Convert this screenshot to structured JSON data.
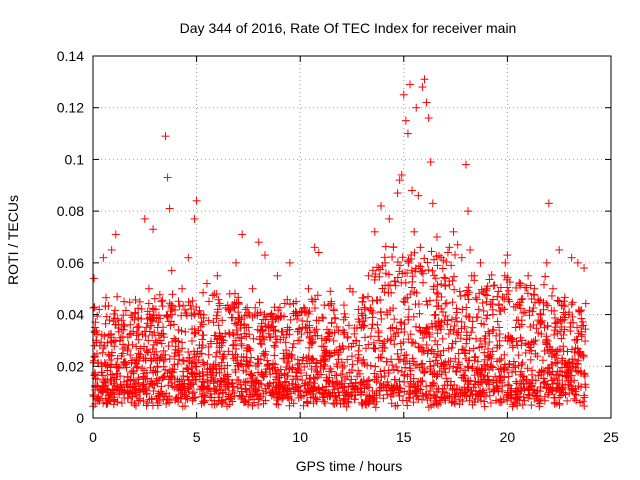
{
  "chart_data": {
    "type": "scatter",
    "title": "Day 344 of 2016, Rate Of TEC Index for receiver main",
    "xlabel": "GPS time / hours",
    "ylabel": "ROTI / TECUs",
    "xlim": [
      0,
      25
    ],
    "ylim": [
      0,
      0.14
    ],
    "xticks": [
      0,
      5,
      10,
      15,
      20,
      25
    ],
    "xtick_labels": [
      "0",
      "5",
      "10",
      "15",
      "20",
      "25"
    ],
    "yticks": [
      0,
      0.02,
      0.04,
      0.06,
      0.08,
      0.1,
      0.12,
      0.14
    ],
    "ytick_labels": [
      "0",
      "0.02",
      "0.04",
      "0.06",
      "0.08",
      "0.1",
      "0.12",
      "0.14"
    ],
    "grid": true,
    "marker": "plus",
    "marker_color": "#ff0000",
    "series": [
      {
        "name": "ROTI",
        "x": [
          0.05,
          0.1,
          0.2,
          0.3,
          0.5,
          0.7,
          0.9,
          1.1,
          1.3,
          1.5,
          1.8,
          2.0,
          2.2,
          2.5,
          2.7,
          2.9,
          3.1,
          3.3,
          3.5,
          3.6,
          3.7,
          3.8,
          4.0,
          4.3,
          4.6,
          4.9,
          5.0,
          5.2,
          5.5,
          5.8,
          6.0,
          6.3,
          6.6,
          6.9,
          7.2,
          7.4,
          7.7,
          8.0,
          8.3,
          8.6,
          8.9,
          9.2,
          9.5,
          9.8,
          10.1,
          10.4,
          10.7,
          10.9,
          11.2,
          11.5,
          11.8,
          12.1,
          12.4,
          12.7,
          13.0,
          13.3,
          13.6,
          13.9,
          14.1,
          14.3,
          14.5,
          14.7,
          14.8,
          14.9,
          15.0,
          15.1,
          15.2,
          15.3,
          15.4,
          15.5,
          15.6,
          15.7,
          15.8,
          15.9,
          16.0,
          16.1,
          16.2,
          16.3,
          16.4,
          16.6,
          16.8,
          17.0,
          17.2,
          17.4,
          17.6,
          17.8,
          18.0,
          18.1,
          18.2,
          18.4,
          18.7,
          19.0,
          19.3,
          19.6,
          19.9,
          20.0,
          20.1,
          20.4,
          20.7,
          21.0,
          21.3,
          21.6,
          21.9,
          22.0,
          22.2,
          22.5,
          22.8,
          23.1,
          23.4,
          23.7
        ],
        "y": [
          0.054,
          0.035,
          0.015,
          0.042,
          0.062,
          0.02,
          0.065,
          0.071,
          0.03,
          0.045,
          0.012,
          0.038,
          0.025,
          0.077,
          0.05,
          0.073,
          0.02,
          0.045,
          0.109,
          0.093,
          0.081,
          0.057,
          0.03,
          0.05,
          0.062,
          0.077,
          0.084,
          0.04,
          0.052,
          0.02,
          0.055,
          0.03,
          0.048,
          0.06,
          0.071,
          0.035,
          0.05,
          0.068,
          0.063,
          0.04,
          0.055,
          0.025,
          0.06,
          0.045,
          0.035,
          0.05,
          0.066,
          0.064,
          0.03,
          0.045,
          0.02,
          0.038,
          0.05,
          0.03,
          0.045,
          0.055,
          0.072,
          0.082,
          0.06,
          0.077,
          0.066,
          0.087,
          0.092,
          0.094,
          0.125,
          0.115,
          0.11,
          0.129,
          0.088,
          0.072,
          0.12,
          0.086,
          0.066,
          0.128,
          0.131,
          0.122,
          0.116,
          0.099,
          0.083,
          0.07,
          0.062,
          0.054,
          0.066,
          0.072,
          0.067,
          0.062,
          0.098,
          0.08,
          0.065,
          0.055,
          0.06,
          0.05,
          0.04,
          0.035,
          0.06,
          0.063,
          0.045,
          0.035,
          0.03,
          0.055,
          0.05,
          0.04,
          0.06,
          0.083,
          0.05,
          0.065,
          0.04,
          0.062,
          0.06,
          0.058
        ]
      }
    ],
    "background_density_note_hours": [
      0,
      23.8
    ]
  }
}
